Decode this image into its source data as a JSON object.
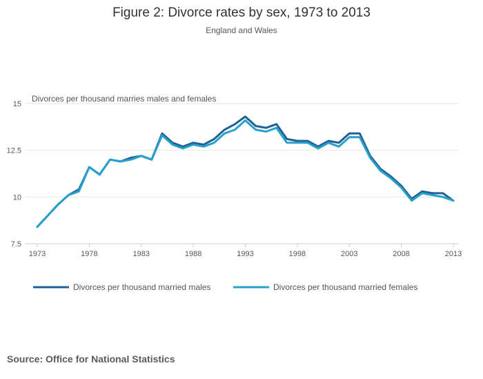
{
  "chart_data": {
    "type": "line",
    "title": "Figure 2: Divorce rates by sex, 1973 to 2013",
    "subtitle": "England and Wales",
    "ylabel": "Divorces per thousand marries males and females",
    "xlabel": "",
    "ylim": [
      7.5,
      15
    ],
    "yticks": [
      7.5,
      10,
      12.5,
      15
    ],
    "ytick_labels": [
      "7.5",
      "10",
      "12.5",
      "15"
    ],
    "xlim": [
      1973,
      2013
    ],
    "xticks": [
      1973,
      1978,
      1983,
      1988,
      1993,
      1998,
      2003,
      2008,
      2013
    ],
    "grid": true,
    "legend_position": "bottom",
    "x": [
      1973,
      1974,
      1975,
      1976,
      1977,
      1978,
      1979,
      1980,
      1981,
      1982,
      1983,
      1984,
      1985,
      1986,
      1987,
      1988,
      1989,
      1990,
      1991,
      1992,
      1993,
      1994,
      1995,
      1996,
      1997,
      1998,
      1999,
      2000,
      2001,
      2002,
      2003,
      2004,
      2005,
      2006,
      2007,
      2008,
      2009,
      2010,
      2011,
      2012,
      2013
    ],
    "series": [
      {
        "name": "Divorces per thousand married males",
        "color": "#206095",
        "values": [
          8.4,
          9.0,
          9.6,
          10.1,
          10.4,
          11.6,
          11.2,
          12.0,
          11.9,
          12.1,
          12.2,
          12.0,
          13.4,
          12.9,
          12.7,
          12.9,
          12.8,
          13.1,
          13.6,
          13.9,
          14.3,
          13.8,
          13.7,
          13.9,
          13.1,
          13.0,
          13.0,
          12.7,
          13.0,
          12.9,
          13.4,
          13.4,
          12.2,
          11.5,
          11.1,
          10.6,
          9.9,
          10.3,
          10.2,
          10.2,
          9.8
        ]
      },
      {
        "name": "Divorces per thousand married females",
        "color": "#27a0cc",
        "values": [
          8.4,
          9.0,
          9.6,
          10.1,
          10.3,
          11.6,
          11.2,
          12.0,
          11.9,
          12.0,
          12.2,
          12.0,
          13.3,
          12.8,
          12.6,
          12.8,
          12.7,
          12.9,
          13.4,
          13.6,
          14.1,
          13.6,
          13.5,
          13.7,
          12.9,
          12.9,
          12.9,
          12.6,
          12.9,
          12.7,
          13.2,
          13.2,
          12.1,
          11.4,
          11.0,
          10.5,
          9.8,
          10.2,
          10.1,
          10.0,
          9.8
        ]
      }
    ]
  },
  "footer": {
    "source": "Source: Office for National Statistics"
  }
}
